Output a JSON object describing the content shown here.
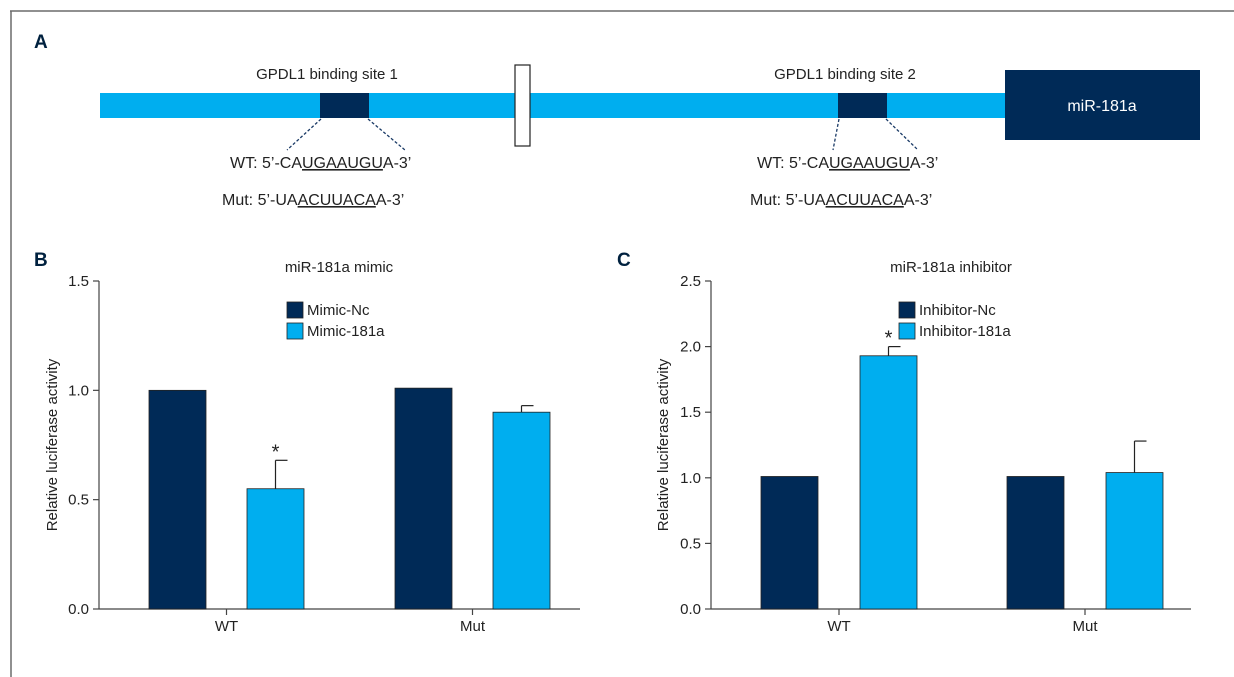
{
  "colors": {
    "dark": "#002a57",
    "light": "#00aeef",
    "axis": "#444444",
    "text": "#222222"
  },
  "panels": {
    "a": {
      "label": "A",
      "site1_label": "GPDL1 binding site 1",
      "site2_label": "GPDL1 binding site 2",
      "mirna_label": "miR-181a",
      "seq_site1": {
        "wt": [
          "WT: 5’-CA",
          "UGAAUGU",
          "A-3’"
        ],
        "mut": [
          "Mut: 5’-UA",
          "ACUUACA",
          "A-3’"
        ]
      },
      "seq_site2": {
        "wt": [
          "WT: 5’-CA",
          "UGAAUGU",
          "A-3’"
        ],
        "mut": [
          "Mut: 5’-UA",
          "ACUUACA",
          "A-3’"
        ]
      }
    },
    "b": {
      "label": "B"
    },
    "c": {
      "label": "C"
    }
  },
  "chart_data": [
    {
      "type": "bar",
      "title": "miR-181a mimic",
      "ylabel": "Relative luciferase activity",
      "xlabel": "",
      "ylim": [
        0,
        1.5
      ],
      "yticks": [
        "0.0",
        "0.5",
        "1.0",
        "1.5"
      ],
      "categories": [
        "WT",
        "Mut"
      ],
      "legend_position": "top-center",
      "series": [
        {
          "name": "Mimic-Nc",
          "color": "#002a57",
          "values": [
            1.0,
            1.01
          ],
          "errors": [
            0,
            0
          ]
        },
        {
          "name": "Mimic-181a",
          "color": "#00aeef",
          "values": [
            0.55,
            0.9
          ],
          "errors": [
            0.13,
            0.03
          ]
        }
      ],
      "annotations": [
        {
          "category": "WT",
          "series": "Mimic-181a",
          "text": "*"
        }
      ]
    },
    {
      "type": "bar",
      "title": "miR-181a inhibitor",
      "ylabel": "Relative luciferase activity",
      "xlabel": "",
      "ylim": [
        0,
        2.5
      ],
      "yticks": [
        "0.0",
        "0.5",
        "1.0",
        "1.5",
        "2.0",
        "2.5"
      ],
      "categories": [
        "WT",
        "Mut"
      ],
      "legend_position": "top-center",
      "series": [
        {
          "name": "Inhibitor-Nc",
          "color": "#002a57",
          "values": [
            1.01,
            1.01
          ],
          "errors": [
            0,
            0
          ]
        },
        {
          "name": "Inhibitor-181a",
          "color": "#00aeef",
          "values": [
            1.93,
            1.04
          ],
          "errors": [
            0.07,
            0.24
          ]
        }
      ],
      "annotations": [
        {
          "category": "WT",
          "series": "Inhibitor-181a",
          "text": "*"
        }
      ]
    }
  ]
}
